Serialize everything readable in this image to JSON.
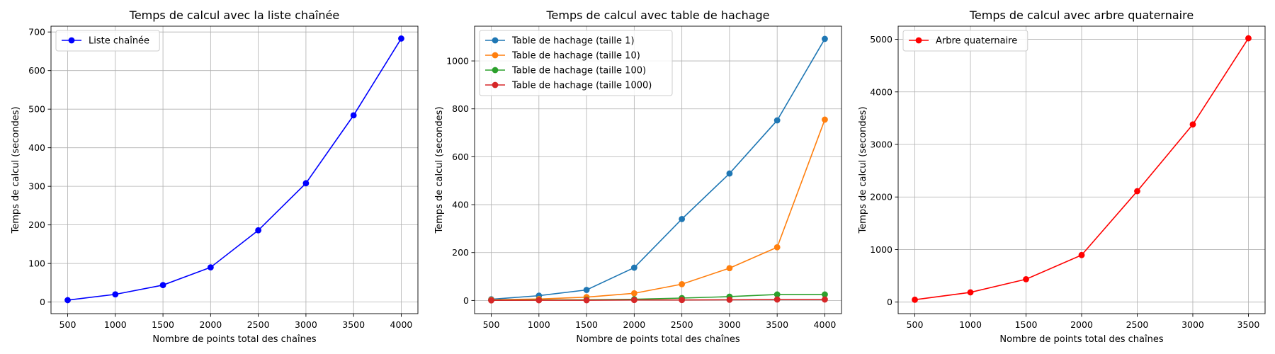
{
  "chart_data": [
    {
      "type": "line",
      "title": "Temps de calcul avec la liste chaînée",
      "xlabel": "Nombre de points total des chaînes",
      "ylabel": "Temps de calcul (secondes)",
      "x": [
        500,
        1000,
        1500,
        2000,
        2500,
        3000,
        3500,
        4000
      ],
      "xticks": [
        500,
        1000,
        1500,
        2000,
        2500,
        3000,
        3500,
        4000
      ],
      "yticks": [
        0,
        100,
        200,
        300,
        400,
        500,
        600,
        700
      ],
      "xlim": [
        325,
        4175
      ],
      "ylim": [
        -30,
        715
      ],
      "grid": true,
      "legend": "upper-left",
      "series": [
        {
          "name": "Liste chaînée",
          "color": "#0000ff",
          "values": [
            5,
            20,
            44,
            90,
            186,
            308,
            484,
            683
          ]
        }
      ]
    },
    {
      "type": "line",
      "title": "Temps de calcul avec table de hachage",
      "xlabel": "Nombre de points total des chaînes",
      "ylabel": "Temps de calcul (secondes)",
      "x": [
        500,
        1000,
        1500,
        2000,
        2500,
        3000,
        3500,
        4000
      ],
      "xticks": [
        500,
        1000,
        1500,
        2000,
        2500,
        3000,
        3500,
        4000
      ],
      "yticks": [
        0,
        200,
        400,
        600,
        800,
        1000
      ],
      "xlim": [
        325,
        4175
      ],
      "ylim": [
        -55,
        1145
      ],
      "grid": true,
      "legend": "upper-left",
      "series": [
        {
          "name": "Table de hachage (taille 1)",
          "color": "#1f77b4",
          "values": [
            5,
            20,
            44,
            137,
            340,
            530,
            752,
            1092
          ]
        },
        {
          "name": "Table de hachage (taille 10)",
          "color": "#ff7f0e",
          "values": [
            3,
            6,
            14,
            30,
            68,
            135,
            222,
            755
          ]
        },
        {
          "name": "Table de hachage (taille 100)",
          "color": "#2ca02c",
          "values": [
            1,
            2,
            3,
            5,
            10,
            16,
            25,
            25
          ]
        },
        {
          "name": "Table de hachage (taille 1000)",
          "color": "#d62728",
          "values": [
            0.5,
            1,
            1,
            2,
            2,
            3,
            4,
            4
          ]
        }
      ]
    },
    {
      "type": "line",
      "title": "Temps de calcul avec arbre quaternaire",
      "xlabel": "Nombre de points total des chaînes",
      "ylabel": "Temps de calcul (secondes)",
      "x": [
        500,
        1000,
        1500,
        2000,
        2500,
        3000,
        3500
      ],
      "xticks": [
        500,
        1000,
        1500,
        2000,
        2500,
        3000,
        3500
      ],
      "yticks": [
        0,
        1000,
        2000,
        3000,
        4000,
        5000
      ],
      "xlim": [
        350,
        3650
      ],
      "ylim": [
        -220,
        5250
      ],
      "grid": true,
      "legend": "upper-left",
      "series": [
        {
          "name": "Arbre quaternaire",
          "color": "#ff0000",
          "values": [
            45,
            185,
            435,
            895,
            2110,
            3380,
            5020
          ]
        }
      ]
    }
  ]
}
